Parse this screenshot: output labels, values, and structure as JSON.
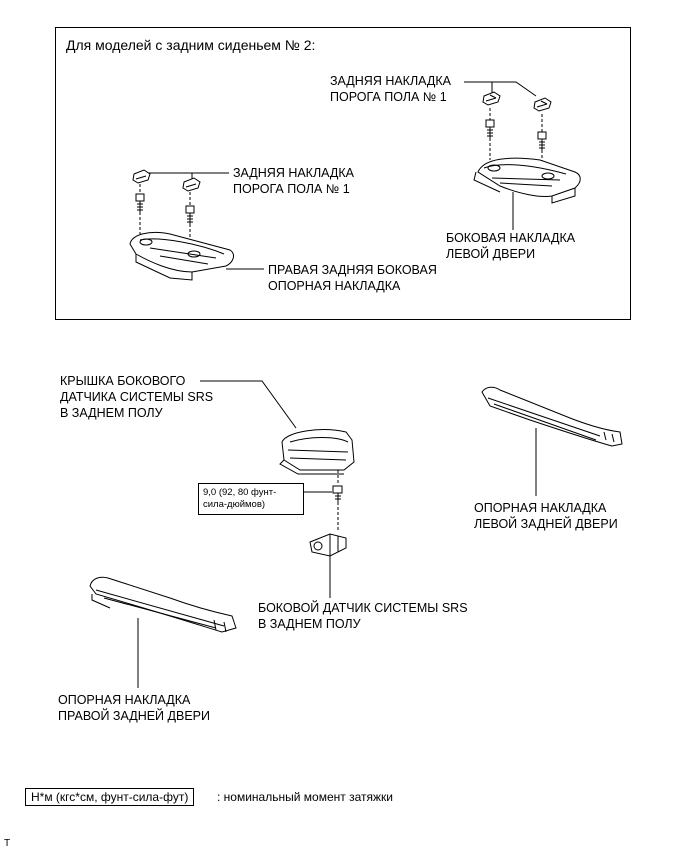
{
  "frame": {
    "title": "Для моделей с задним сиденьем № 2:",
    "label_clip_upper": [
      "ЗАДНЯЯ НАКЛАДКА",
      "ПОРОГА ПОЛА № 1"
    ],
    "label_clip_lower": [
      "ЗАДНЯЯ НАКЛАДКА",
      "ПОРОГА ПОЛА № 1"
    ],
    "label_left_door": [
      "БОКОВАЯ НАКЛАДКА",
      "ЛЕВОЙ ДВЕРИ"
    ],
    "label_right_rear": [
      "ПРАВАЯ ЗАДНЯЯ БОКОВАЯ",
      "ОПОРНАЯ НАКЛАДКА"
    ]
  },
  "main": {
    "sensor_cover": [
      "КРЫШКА БОКОВОГО",
      "ДАТЧИКА СИСТЕМЫ SRS",
      "В ЗАДНЕМ ПОЛУ"
    ],
    "torque": [
      "9,0 (92, 80 фунт-",
      "сила-дюймов)"
    ],
    "left_rear_plate": [
      "ОПОРНАЯ НАКЛАДКА",
      "ЛЕВОЙ ЗАДНЕЙ ДВЕРИ"
    ],
    "side_sensor": [
      "БОКОВОЙ ДАТЧИК СИСТЕМЫ SRS",
      "В ЗАДНЕМ ПОЛУ"
    ],
    "right_rear_plate": [
      "ОПОРНАЯ НАКЛАДКА",
      "ПРАВОЙ ЗАДНЕЙ ДВЕРИ"
    ]
  },
  "legend": {
    "unit": "Н*м (кгс*см, фунт-сила-фут)",
    "description": ": номинальный момент затяжки"
  },
  "corner_mark": "T"
}
